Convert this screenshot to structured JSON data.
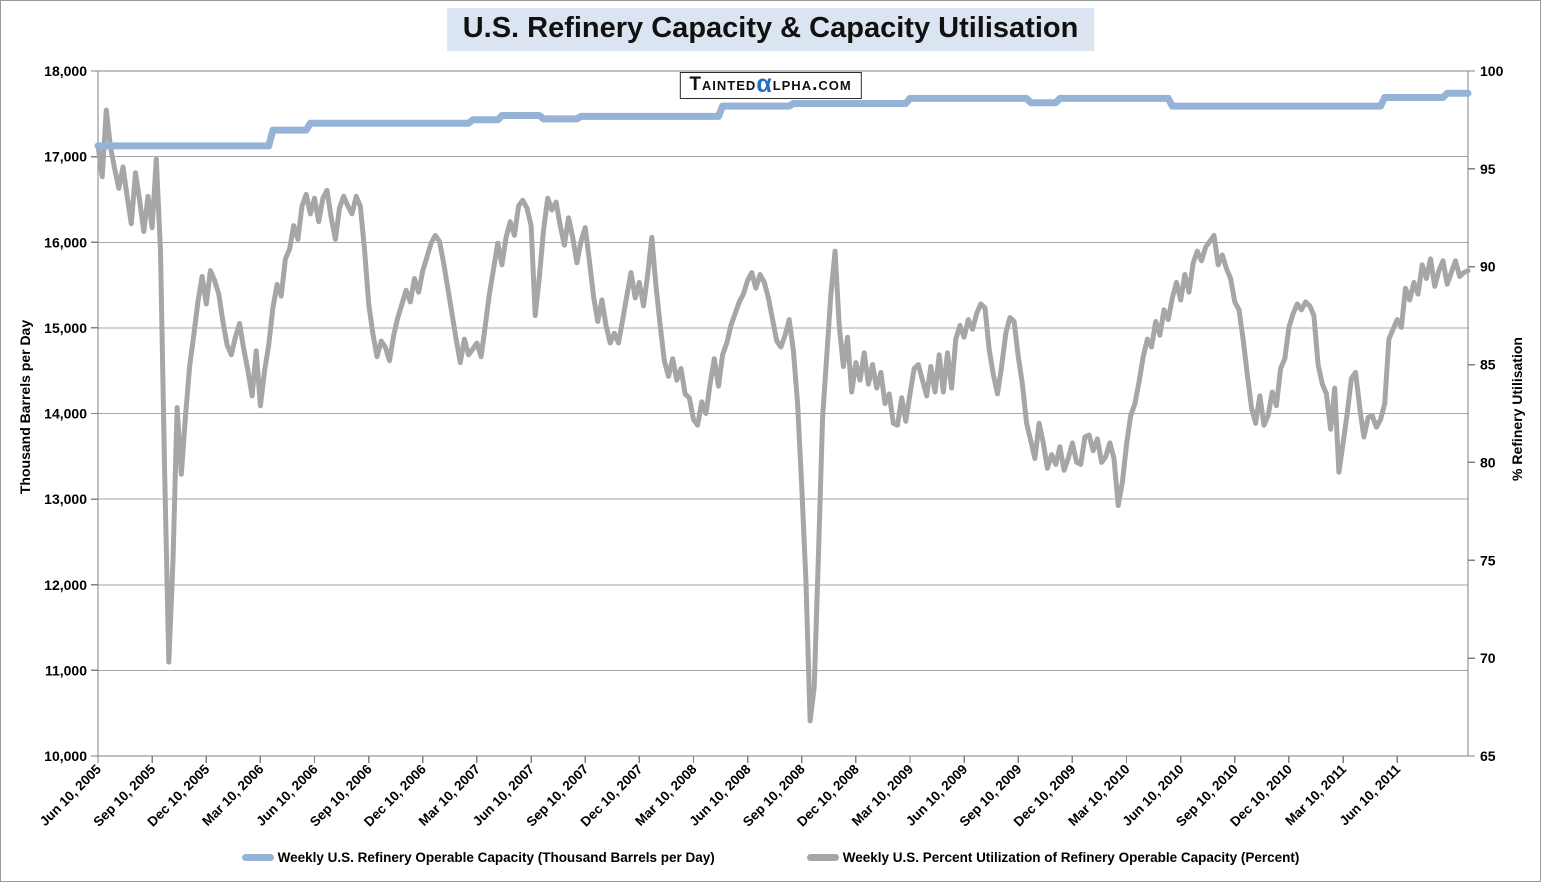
{
  "title": "U.S. Refinery Capacity & Capacity Utilisation",
  "watermark": {
    "prefix": "Tainted",
    "alpha": "α",
    "suffix": "lpha.com",
    "alpha_color": "#1f6fc5"
  },
  "axes": {
    "left_title": "Thousand Barrels per Day",
    "right_title": "% Refinery Utilisation"
  },
  "legend": [
    {
      "label": "Weekly U.S. Refinery Operable Capacity  (Thousand Barrels per Day)",
      "color": "#95B3D7"
    },
    {
      "label": "Weekly U.S. Percent Utilization of Refinery Operable Capacity  (Percent)",
      "color": "#A6A6A6"
    }
  ],
  "colors": {
    "capacity_line": "#95B3D7",
    "utilization_line": "#A6A6A6",
    "grid": "#a6a6a6",
    "axis": "#808080",
    "title_highlight": "#dbe5f1",
    "background": "#ffffff"
  },
  "chart_data": {
    "type": "line",
    "title": "U.S. Refinery Capacity & Capacity Utilisation",
    "x_unit": "weekly observations, Jun 10 2005 onward",
    "x_tick_interval_weeks": 13,
    "x_tick_labels": [
      "Jun 10, 2005",
      "Sep 10, 2005",
      "Dec 10, 2005",
      "Mar 10, 2006",
      "Jun 10, 2006",
      "Sep 10, 2006",
      "Dec 10, 2006",
      "Mar 10, 2007",
      "Jun 10, 2007",
      "Sep 10, 2007",
      "Dec 10, 2007",
      "Mar 10, 2008",
      "Jun 10, 2008",
      "Sep 10, 2008",
      "Dec 10, 2008",
      "Mar 10, 2009",
      "Jun 10, 2009",
      "Sep 10, 2009",
      "Dec 10, 2009",
      "Mar 10, 2010",
      "Jun 10, 2010",
      "Sep 10, 2010",
      "Dec 10, 2010",
      "Mar 10, 2011",
      "Jun 10, 2011"
    ],
    "left_axis": {
      "min": 10000,
      "max": 18000,
      "step": 1000,
      "tick_labels": [
        "18,000",
        "17,000",
        "16,000",
        "15,000",
        "14,000",
        "13,000",
        "12,000",
        "11,000",
        "10,000"
      ]
    },
    "right_axis": {
      "min": 65,
      "max": 100,
      "step": 5,
      "tick_labels": [
        "100",
        "95",
        "90",
        "85",
        "80",
        "75",
        "70",
        "65"
      ]
    },
    "grid": "horizontal",
    "legend_position": "bottom",
    "series": [
      {
        "name": "Weekly U.S. Refinery Operable Capacity (Thousand Barrels per Day)",
        "axis": "left",
        "color": "#95B3D7",
        "stroke_width": 7,
        "steps_index_value": [
          [
            0,
            17125
          ],
          [
            42,
            17310
          ],
          [
            51,
            17390
          ],
          [
            90,
            17430
          ],
          [
            97,
            17480
          ],
          [
            107,
            17440
          ],
          [
            116,
            17470
          ],
          [
            150,
            17590
          ],
          [
            167,
            17620
          ],
          [
            195,
            17680
          ],
          [
            224,
            17630
          ],
          [
            231,
            17680
          ],
          [
            258,
            17590
          ],
          [
            309,
            17690
          ],
          [
            324,
            17740
          ]
        ]
      },
      {
        "name": "Weekly U.S. Percent Utilization of Refinery Operable Capacity (Percent)",
        "axis": "right",
        "color": "#A6A6A6",
        "stroke_width": 5,
        "values": [
          96.2,
          94.6,
          98.0,
          96.1,
          95.0,
          94.0,
          95.1,
          93.6,
          92.2,
          94.8,
          93.4,
          91.8,
          93.6,
          92.0,
          95.5,
          90.8,
          79.6,
          69.8,
          75.0,
          82.8,
          79.4,
          82.3,
          84.9,
          86.5,
          88.2,
          89.5,
          88.1,
          89.8,
          89.3,
          88.6,
          87.2,
          86.0,
          85.5,
          86.4,
          87.1,
          85.8,
          84.7,
          83.4,
          85.7,
          82.9,
          84.7,
          86.0,
          87.9,
          89.1,
          88.5,
          90.4,
          90.9,
          92.1,
          91.4,
          93.1,
          93.7,
          92.7,
          93.5,
          92.3,
          93.5,
          93.9,
          92.5,
          91.4,
          93.0,
          93.6,
          93.1,
          92.7,
          93.6,
          93.1,
          90.9,
          88.1,
          86.6,
          85.4,
          86.2,
          85.9,
          85.2,
          86.5,
          87.4,
          88.1,
          88.8,
          88.2,
          89.4,
          88.7,
          89.8,
          90.5,
          91.2,
          91.6,
          91.3,
          90.2,
          88.9,
          87.6,
          86.3,
          85.1,
          86.3,
          85.5,
          85.8,
          86.1,
          85.4,
          87.0,
          88.6,
          89.9,
          91.2,
          90.1,
          91.5,
          92.3,
          91.6,
          93.1,
          93.4,
          93.0,
          92.1,
          87.5,
          89.5,
          91.9,
          93.5,
          92.9,
          93.3,
          92.1,
          91.1,
          92.5,
          91.5,
          90.2,
          91.3,
          92.0,
          90.3,
          88.5,
          87.2,
          88.3,
          87.0,
          86.1,
          86.6,
          86.1,
          87.3,
          88.5,
          89.7,
          88.4,
          89.2,
          88.0,
          89.6,
          91.5,
          89.0,
          87.0,
          85.2,
          84.4,
          85.3,
          84.2,
          84.8,
          83.5,
          83.3,
          82.2,
          81.9,
          83.1,
          82.5,
          84.0,
          85.3,
          83.9,
          85.5,
          86.1,
          87.0,
          87.6,
          88.2,
          88.6,
          89.3,
          89.7,
          88.9,
          89.6,
          89.2,
          88.4,
          87.3,
          86.2,
          85.9,
          86.5,
          87.3,
          85.7,
          83.0,
          78.8,
          74.0,
          66.8,
          68.5,
          75.2,
          82.3,
          85.4,
          88.6,
          90.8,
          87.0,
          84.9,
          86.4,
          83.6,
          85.1,
          84.2,
          85.6,
          84.0,
          85.0,
          83.8,
          84.6,
          83.0,
          83.5,
          82.0,
          81.9,
          83.3,
          82.1,
          83.5,
          84.8,
          85.0,
          84.2,
          83.4,
          84.9,
          83.6,
          85.5,
          83.6,
          85.6,
          83.8,
          86.3,
          87.0,
          86.4,
          87.3,
          86.8,
          87.6,
          88.1,
          87.9,
          85.8,
          84.5,
          83.5,
          84.9,
          86.6,
          87.4,
          87.2,
          85.4,
          84.0,
          82.0,
          81.1,
          80.2,
          82.0,
          81.0,
          79.7,
          80.4,
          79.9,
          80.8,
          79.6,
          80.2,
          81.0,
          80.0,
          79.9,
          81.3,
          81.4,
          80.6,
          81.2,
          80.0,
          80.3,
          81.0,
          80.2,
          77.8,
          79.0,
          80.9,
          82.4,
          83.0,
          84.1,
          85.4,
          86.3,
          85.9,
          87.2,
          86.5,
          87.8,
          87.3,
          88.4,
          89.2,
          88.3,
          89.6,
          88.7,
          90.2,
          90.8,
          90.3,
          91.0,
          91.3,
          91.6,
          90.1,
          90.6,
          89.9,
          89.4,
          88.2,
          87.8,
          86.3,
          84.5,
          82.8,
          82.0,
          83.4,
          81.9,
          82.4,
          83.6,
          82.9,
          84.8,
          85.3,
          86.9,
          87.6,
          88.1,
          87.8,
          88.2,
          88.0,
          87.5,
          85.0,
          84.0,
          83.5,
          81.7,
          83.8,
          79.5,
          81.0,
          82.5,
          84.3,
          84.6,
          82.8,
          81.3,
          82.3,
          82.4,
          81.8,
          82.2,
          83.0,
          86.3,
          86.8,
          87.3,
          86.9,
          88.9,
          88.3,
          89.2,
          88.6,
          90.1,
          89.4,
          90.4,
          89.0,
          89.8,
          90.3,
          89.1,
          89.7,
          90.3,
          89.5,
          89.7,
          89.8
        ]
      }
    ]
  }
}
